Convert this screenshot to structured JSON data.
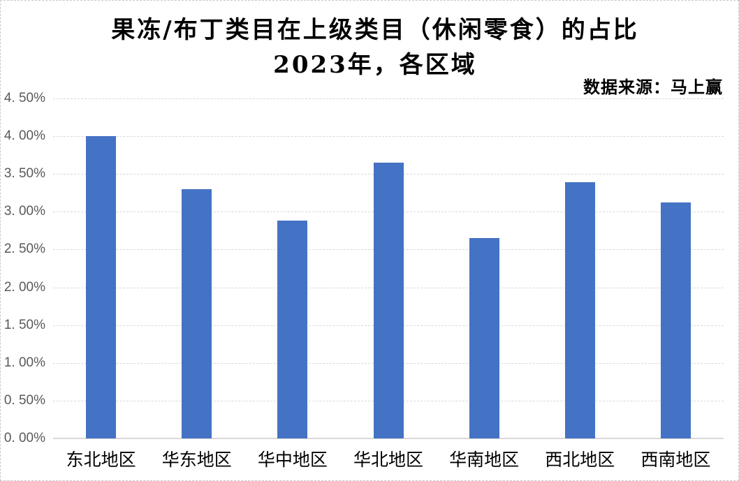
{
  "chart_data": {
    "type": "bar",
    "title": "果冻/布丁类目在上级类目（休闲零食）的占比",
    "subtitle": "2023年，各区域",
    "source_note": "数据来源：马上赢",
    "categories": [
      "东北地区",
      "华东地区",
      "华中地区",
      "华北地区",
      "华南地区",
      "西北地区",
      "西南地区"
    ],
    "values": [
      4.0,
      3.3,
      2.88,
      3.65,
      2.65,
      3.39,
      3.12
    ],
    "value_unit": "%",
    "xlabel": "",
    "ylabel": "",
    "ylim": [
      0,
      4.5
    ],
    "ytick_step": 0.5,
    "ytick_labels": [
      "0. 00%",
      "0. 50%",
      "1. 00%",
      "1. 50%",
      "2. 00%",
      "2. 50%",
      "3. 00%",
      "3. 50%",
      "4. 00%",
      "4. 50%"
    ],
    "grid": true,
    "legend_position": "none",
    "bar_color": "#4472C4",
    "axis_text_color": "#595959",
    "gridline_color": "#D9D9D9"
  }
}
